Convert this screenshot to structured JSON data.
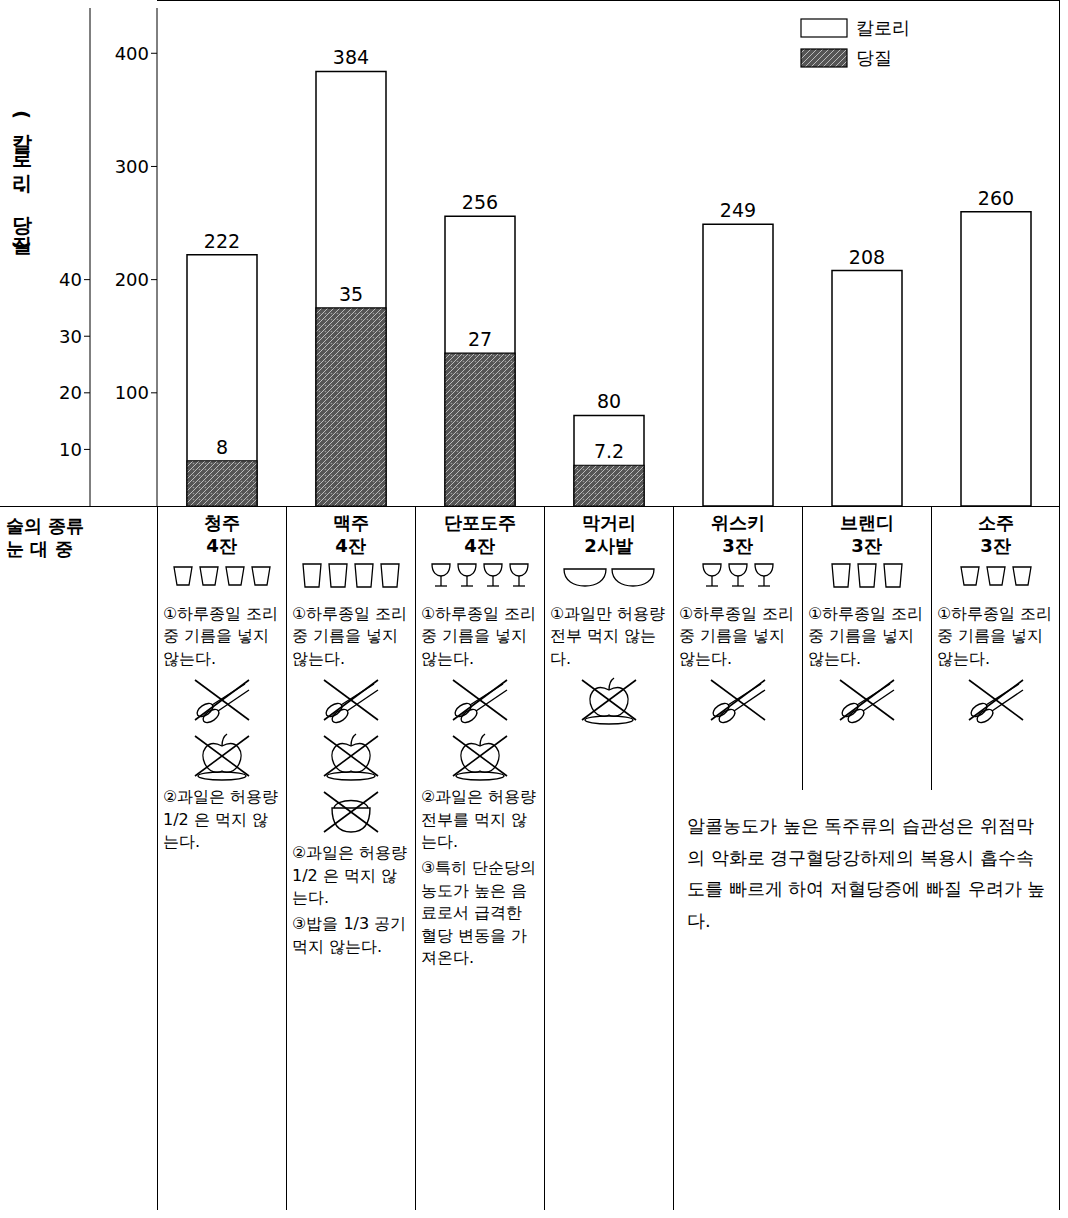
{
  "chart_data": {
    "type": "bar",
    "y_label": "(칼로리 · 당질)",
    "categories": [
      "청주",
      "맥주",
      "단포도주",
      "막거리",
      "위스키",
      "브랜디",
      "소주"
    ],
    "series": [
      {
        "name": "칼로리",
        "color": "#ffffff",
        "values": [
          222,
          384,
          256,
          80,
          249,
          208,
          260
        ]
      },
      {
        "name": "당질",
        "color": "#555555",
        "axis": "y2",
        "values": [
          8,
          35,
          27,
          7.2,
          null,
          null,
          null
        ]
      }
    ],
    "ylim": [
      0,
      440
    ],
    "yticks": [
      100,
      200,
      300,
      400
    ],
    "y2lim": [
      0,
      88
    ],
    "y2ticks": [
      10,
      20,
      30,
      40
    ],
    "legend": "upper right",
    "data_labels": true,
    "grid": false
  },
  "table": {
    "row_header": [
      "술의 종류",
      "눈 대 중"
    ],
    "columns": [
      {
        "amount": "4잔",
        "notes": [
          "①하루종일 조리중 기름을 넣지 않는다.",
          "②과일은 허용량 1/2 은 먹지 않는다."
        ]
      },
      {
        "amount": "4잔",
        "notes": [
          "①하루종일 조리중 기름을 넣지 않는다.",
          "②과일은 허용량 1/2 은 먹지 않는다.",
          "③밥을 1/3 공기 먹지 않는다."
        ]
      },
      {
        "amount": "4잔",
        "notes": [
          "①하루종일 조리중 기름을 넣지 않는다.",
          "②과일은 허용량 전부를 먹지 않는다.",
          "③특히 단순당의 농도가 높은 음료로서 급격한 혈당 변동을 가져온다."
        ]
      },
      {
        "amount": "2사발",
        "notes": [
          "①과일만 허용량 전부 먹지 않는다."
        ]
      },
      {
        "amount": "3잔",
        "notes": [
          "①하루종일 조리중 기름을 넣지 않는다."
        ]
      },
      {
        "amount": "3잔",
        "notes": [
          "①하루종일 조리중 기름을 넣지 않는다."
        ]
      },
      {
        "amount": "3잔",
        "notes": [
          "①하루종일 조리중 기름을 넣지 않는다."
        ]
      }
    ],
    "remark": "알콜농도가 높은 독주류의 습관성은 위점막의 악화로 경구혈당강하제의 복용시 흡수속도를 빠르게 하여 저혈당증에 빠질 우려가 높다."
  }
}
